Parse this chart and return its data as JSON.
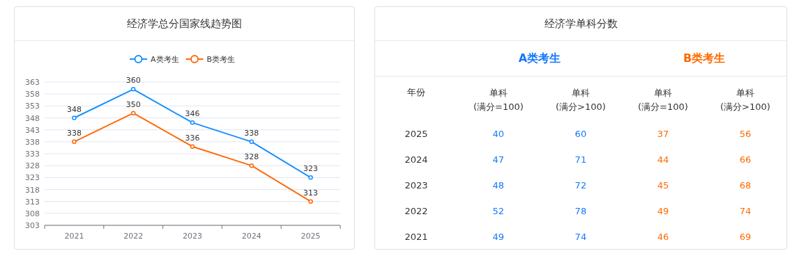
{
  "chart_data": [
    {
      "type": "line",
      "title": "经济学总分国家线趋势图",
      "categories": [
        "2021",
        "2022",
        "2023",
        "2024",
        "2025"
      ],
      "series": [
        {
          "name": "A类考生",
          "color": "#1890ff",
          "values": [
            348,
            360,
            346,
            338,
            323
          ]
        },
        {
          "name": "B类考生",
          "color": "#ff6a0a",
          "values": [
            338,
            350,
            336,
            328,
            313
          ]
        }
      ],
      "ylim": [
        303,
        363
      ],
      "yticks": [
        303,
        308,
        313,
        318,
        323,
        328,
        333,
        338,
        343,
        348,
        353,
        358,
        363
      ],
      "grid": "y",
      "legend": "top",
      "marker": "circle",
      "line_style": "solid",
      "data_labels": true
    },
    {
      "type": "heatmap",
      "title": "经济学单科分数",
      "ylabel": "年份",
      "y_categories": [
        "2025",
        "2024",
        "2023",
        "2022",
        "2021"
      ],
      "annotations": [
        "A类考生",
        "B类考生"
      ],
      "categories": [
        "单科(满分=100)",
        "单科(满分>100)",
        "单科(满分=100)",
        "单科(满分>100)"
      ],
      "colors": [
        "#1677ff",
        "#1677ff",
        "#ff6a00",
        "#ff6a00"
      ],
      "cells": [
        [
          40,
          60,
          37,
          56
        ],
        [
          47,
          71,
          44,
          66
        ],
        [
          48,
          72,
          45,
          68
        ],
        [
          52,
          78,
          49,
          74
        ],
        [
          49,
          74,
          46,
          69
        ]
      ],
      "data_labels": true
    }
  ]
}
